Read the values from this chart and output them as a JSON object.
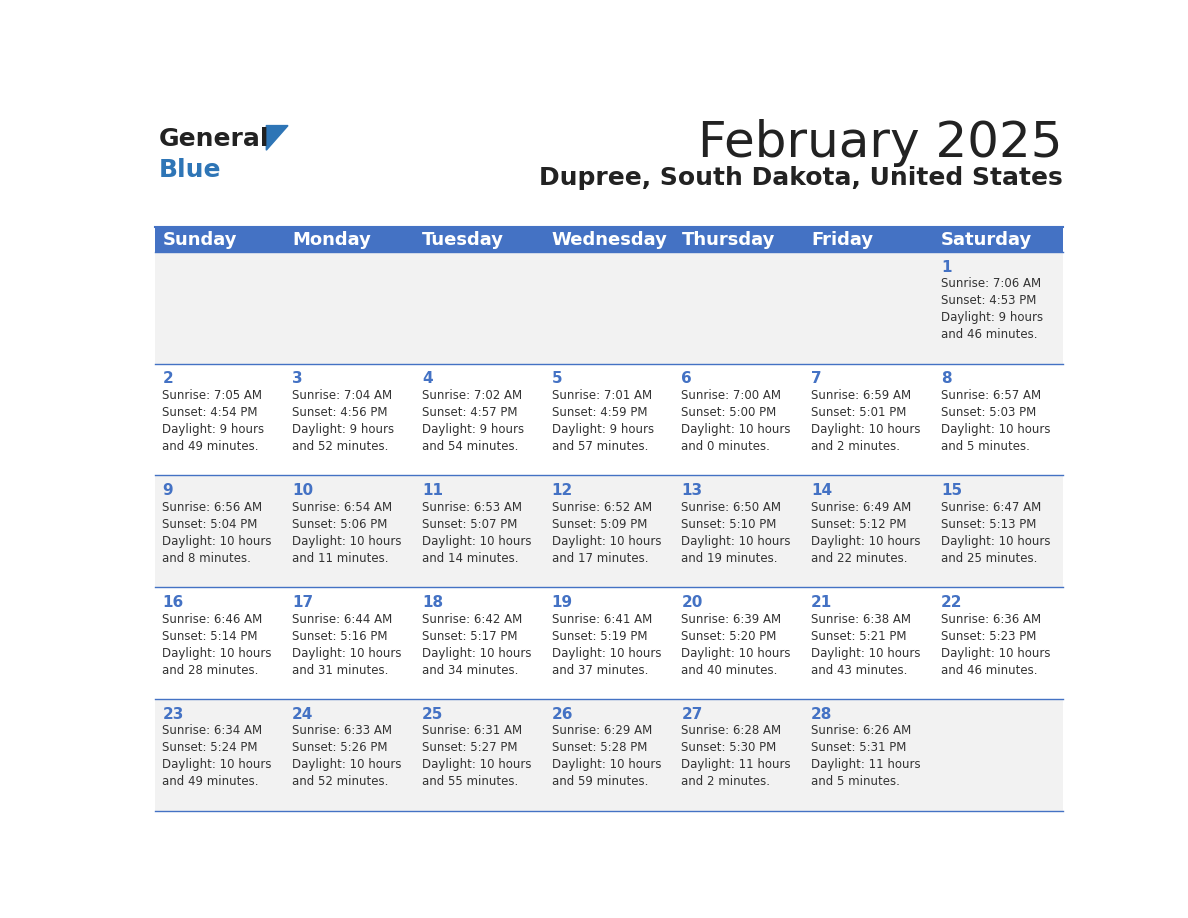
{
  "title": "February 2025",
  "subtitle": "Dupree, South Dakota, United States",
  "header_bg": "#4472C4",
  "header_text_color": "#FFFFFF",
  "cell_bg_even": "#F2F2F2",
  "cell_bg_odd": "#FFFFFF",
  "day_headers": [
    "Sunday",
    "Monday",
    "Tuesday",
    "Wednesday",
    "Thursday",
    "Friday",
    "Saturday"
  ],
  "header_fontsize": 13,
  "day_number_fontsize": 11,
  "info_fontsize": 8.5,
  "title_fontsize": 36,
  "subtitle_fontsize": 18,
  "logo_text_general": "General",
  "logo_text_blue": "Blue",
  "logo_color": "#2E75B6",
  "divider_color": "#4472C4",
  "weeks": [
    [
      {
        "day": null,
        "info": ""
      },
      {
        "day": null,
        "info": ""
      },
      {
        "day": null,
        "info": ""
      },
      {
        "day": null,
        "info": ""
      },
      {
        "day": null,
        "info": ""
      },
      {
        "day": null,
        "info": ""
      },
      {
        "day": 1,
        "info": "Sunrise: 7:06 AM\nSunset: 4:53 PM\nDaylight: 9 hours\nand 46 minutes."
      }
    ],
    [
      {
        "day": 2,
        "info": "Sunrise: 7:05 AM\nSunset: 4:54 PM\nDaylight: 9 hours\nand 49 minutes."
      },
      {
        "day": 3,
        "info": "Sunrise: 7:04 AM\nSunset: 4:56 PM\nDaylight: 9 hours\nand 52 minutes."
      },
      {
        "day": 4,
        "info": "Sunrise: 7:02 AM\nSunset: 4:57 PM\nDaylight: 9 hours\nand 54 minutes."
      },
      {
        "day": 5,
        "info": "Sunrise: 7:01 AM\nSunset: 4:59 PM\nDaylight: 9 hours\nand 57 minutes."
      },
      {
        "day": 6,
        "info": "Sunrise: 7:00 AM\nSunset: 5:00 PM\nDaylight: 10 hours\nand 0 minutes."
      },
      {
        "day": 7,
        "info": "Sunrise: 6:59 AM\nSunset: 5:01 PM\nDaylight: 10 hours\nand 2 minutes."
      },
      {
        "day": 8,
        "info": "Sunrise: 6:57 AM\nSunset: 5:03 PM\nDaylight: 10 hours\nand 5 minutes."
      }
    ],
    [
      {
        "day": 9,
        "info": "Sunrise: 6:56 AM\nSunset: 5:04 PM\nDaylight: 10 hours\nand 8 minutes."
      },
      {
        "day": 10,
        "info": "Sunrise: 6:54 AM\nSunset: 5:06 PM\nDaylight: 10 hours\nand 11 minutes."
      },
      {
        "day": 11,
        "info": "Sunrise: 6:53 AM\nSunset: 5:07 PM\nDaylight: 10 hours\nand 14 minutes."
      },
      {
        "day": 12,
        "info": "Sunrise: 6:52 AM\nSunset: 5:09 PM\nDaylight: 10 hours\nand 17 minutes."
      },
      {
        "day": 13,
        "info": "Sunrise: 6:50 AM\nSunset: 5:10 PM\nDaylight: 10 hours\nand 19 minutes."
      },
      {
        "day": 14,
        "info": "Sunrise: 6:49 AM\nSunset: 5:12 PM\nDaylight: 10 hours\nand 22 minutes."
      },
      {
        "day": 15,
        "info": "Sunrise: 6:47 AM\nSunset: 5:13 PM\nDaylight: 10 hours\nand 25 minutes."
      }
    ],
    [
      {
        "day": 16,
        "info": "Sunrise: 6:46 AM\nSunset: 5:14 PM\nDaylight: 10 hours\nand 28 minutes."
      },
      {
        "day": 17,
        "info": "Sunrise: 6:44 AM\nSunset: 5:16 PM\nDaylight: 10 hours\nand 31 minutes."
      },
      {
        "day": 18,
        "info": "Sunrise: 6:42 AM\nSunset: 5:17 PM\nDaylight: 10 hours\nand 34 minutes."
      },
      {
        "day": 19,
        "info": "Sunrise: 6:41 AM\nSunset: 5:19 PM\nDaylight: 10 hours\nand 37 minutes."
      },
      {
        "day": 20,
        "info": "Sunrise: 6:39 AM\nSunset: 5:20 PM\nDaylight: 10 hours\nand 40 minutes."
      },
      {
        "day": 21,
        "info": "Sunrise: 6:38 AM\nSunset: 5:21 PM\nDaylight: 10 hours\nand 43 minutes."
      },
      {
        "day": 22,
        "info": "Sunrise: 6:36 AM\nSunset: 5:23 PM\nDaylight: 10 hours\nand 46 minutes."
      }
    ],
    [
      {
        "day": 23,
        "info": "Sunrise: 6:34 AM\nSunset: 5:24 PM\nDaylight: 10 hours\nand 49 minutes."
      },
      {
        "day": 24,
        "info": "Sunrise: 6:33 AM\nSunset: 5:26 PM\nDaylight: 10 hours\nand 52 minutes."
      },
      {
        "day": 25,
        "info": "Sunrise: 6:31 AM\nSunset: 5:27 PM\nDaylight: 10 hours\nand 55 minutes."
      },
      {
        "day": 26,
        "info": "Sunrise: 6:29 AM\nSunset: 5:28 PM\nDaylight: 10 hours\nand 59 minutes."
      },
      {
        "day": 27,
        "info": "Sunrise: 6:28 AM\nSunset: 5:30 PM\nDaylight: 11 hours\nand 2 minutes."
      },
      {
        "day": 28,
        "info": "Sunrise: 6:26 AM\nSunset: 5:31 PM\nDaylight: 11 hours\nand 5 minutes."
      },
      {
        "day": null,
        "info": ""
      }
    ]
  ]
}
